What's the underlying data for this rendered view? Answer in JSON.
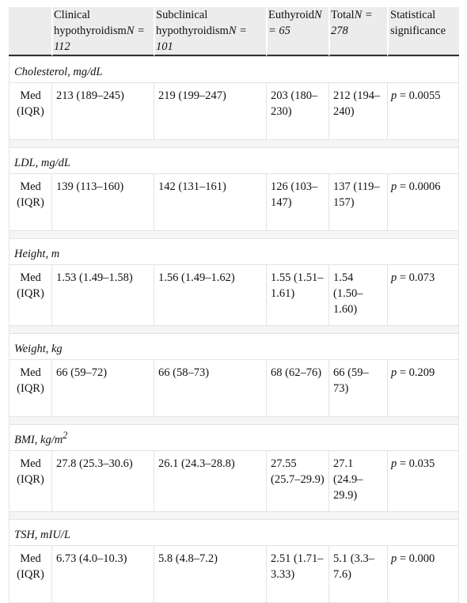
{
  "headers": [
    {
      "label": "",
      "n": ""
    },
    {
      "label": "Clinical hypothyroidism",
      "n": "N = 112"
    },
    {
      "label": "Subclinical hypothyroidism",
      "n": "N = 101"
    },
    {
      "label": "Euthyroid",
      "n": "N = 65"
    },
    {
      "label": "Total",
      "n": "N = 278"
    },
    {
      "label": "Statistical significance",
      "n": ""
    }
  ],
  "sections": [
    {
      "title": "Cholesterol, mg/dL",
      "title_sup": "",
      "stat": "Med (IQR)",
      "values": [
        "213 (189–245)",
        "219 (199–247)",
        "203 (180–230)",
        "212 (194–240)"
      ],
      "p_label": "p",
      "p_value": " = 0.0055"
    },
    {
      "title": "LDL, mg/dL",
      "title_sup": "",
      "stat": "Med (IQR)",
      "values": [
        "139 (113–160)",
        "142 (131–161)",
        "126 (103–147)",
        "137 (119–157)"
      ],
      "p_label": "p",
      "p_value": " = 0.0006"
    },
    {
      "title": "Height, m",
      "title_sup": "",
      "stat": "Med (IQR)",
      "values": [
        "1.53 (1.49–1.58)",
        "1.56 (1.49–1.62)",
        "1.55 (1.51–1.61)",
        "1.54 (1.50–1.60)"
      ],
      "p_label": "p",
      "p_value": " = 0.073"
    },
    {
      "title": "Weight, kg",
      "title_sup": "",
      "stat": "Med (IQR)",
      "values": [
        "66 (59–72)",
        "66 (58–73)",
        "68 (62–76)",
        "66 (59–73)"
      ],
      "p_label": "p",
      "p_value": " = 0.209"
    },
    {
      "title": "BMI, kg/m",
      "title_sup": "2",
      "stat": "Med (IQR)",
      "values": [
        "27.8 (25.3–30.6)",
        "26.1 (24.3–28.8)",
        "27.55 (25.7–29.9)",
        "27.1 (24.9–29.9)"
      ],
      "p_label": "p",
      "p_value": " = 0.035"
    },
    {
      "title": "TSH, mIU/L",
      "title_sup": "",
      "stat": "Med (IQR)",
      "values": [
        "6.73 (4.0–10.3)",
        "5.8 (4.8–7.2)",
        "2.51 (1.71–3.33)",
        "5.1 (3.3–7.6)"
      ],
      "p_label": "p",
      "p_value": " = 0.000"
    }
  ]
}
